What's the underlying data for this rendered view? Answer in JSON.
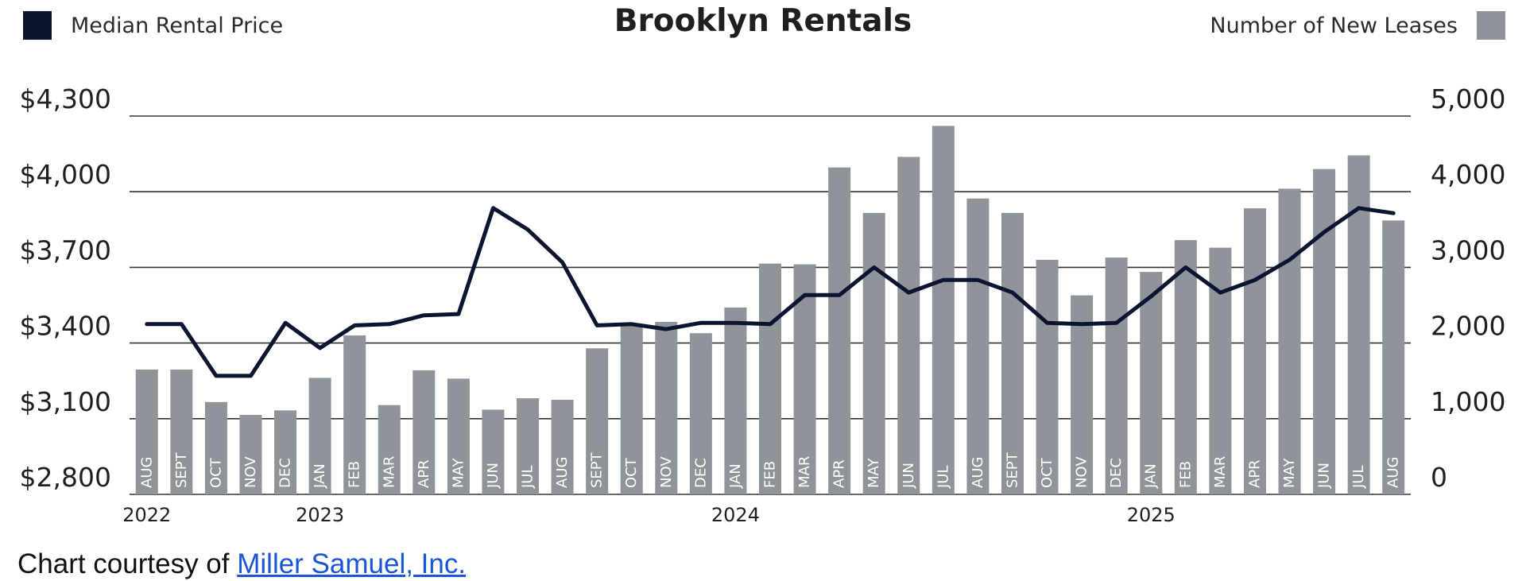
{
  "chart_data": {
    "type": "bar+line",
    "title": "Brooklyn Rentals",
    "legend": [
      {
        "name": "Median Rental Price",
        "color": "#0b1530",
        "mark": "line"
      },
      {
        "name": "Number of New Leases",
        "color": "#8f949b",
        "mark": "bar"
      }
    ],
    "categories": [
      "AUG",
      "SEPT",
      "OCT",
      "NOV",
      "DEC",
      "JAN",
      "FEB",
      "MAR",
      "APR",
      "MAY",
      "JUN",
      "JUL",
      "AUG",
      "SEPT",
      "OCT",
      "NOV",
      "DEC",
      "JAN",
      "FEB",
      "MAR",
      "APR",
      "MAY",
      "JUN",
      "JUL",
      "AUG",
      "SEPT",
      "OCT",
      "NOV",
      "DEC",
      "JAN",
      "FEB",
      "MAR",
      "APR",
      "MAY",
      "JUN",
      "JUL",
      "AUG"
    ],
    "year_labels": [
      {
        "label": "2022",
        "index": 0
      },
      {
        "label": "2023",
        "index": 5
      },
      {
        "label": "2024",
        "index": 17
      },
      {
        "label": "2025",
        "index": 29
      }
    ],
    "series": [
      {
        "name": "Median Rental Price",
        "axis": "left",
        "type": "line",
        "values": [
          3475,
          3475,
          3270,
          3270,
          3480,
          3380,
          3470,
          3475,
          3510,
          3515,
          3935,
          3850,
          3720,
          3470,
          3475,
          3455,
          3480,
          3480,
          3475,
          3590,
          3590,
          3700,
          3600,
          3650,
          3650,
          3600,
          3480,
          3475,
          3480,
          3585,
          3700,
          3600,
          3650,
          3730,
          3840,
          3935,
          3915
        ]
      },
      {
        "name": "Number of New Leases",
        "axis": "right",
        "type": "bar",
        "values": [
          1650,
          1650,
          1220,
          1050,
          1110,
          1540,
          2100,
          1180,
          1640,
          1530,
          1120,
          1270,
          1250,
          1930,
          2240,
          2280,
          2130,
          2470,
          3050,
          3040,
          4320,
          3720,
          4460,
          4870,
          3910,
          3720,
          3100,
          2630,
          3130,
          2940,
          3360,
          3260,
          3780,
          4040,
          4300,
          4480,
          3620
        ]
      }
    ],
    "y_left": {
      "ticks": [
        "$4,300",
        "$4,000",
        "$3,700",
        "$3,400",
        "$3,100",
        "$2,800"
      ],
      "min": 2800,
      "max": 4300
    },
    "y_right": {
      "ticks": [
        "5,000",
        "4,000",
        "3,000",
        "2,000",
        "1,000",
        "0"
      ],
      "min": 0,
      "max": 5000
    },
    "grid": true
  },
  "credit": {
    "prefix": "Chart courtesy of ",
    "link_text": "Miller Samuel, Inc."
  }
}
